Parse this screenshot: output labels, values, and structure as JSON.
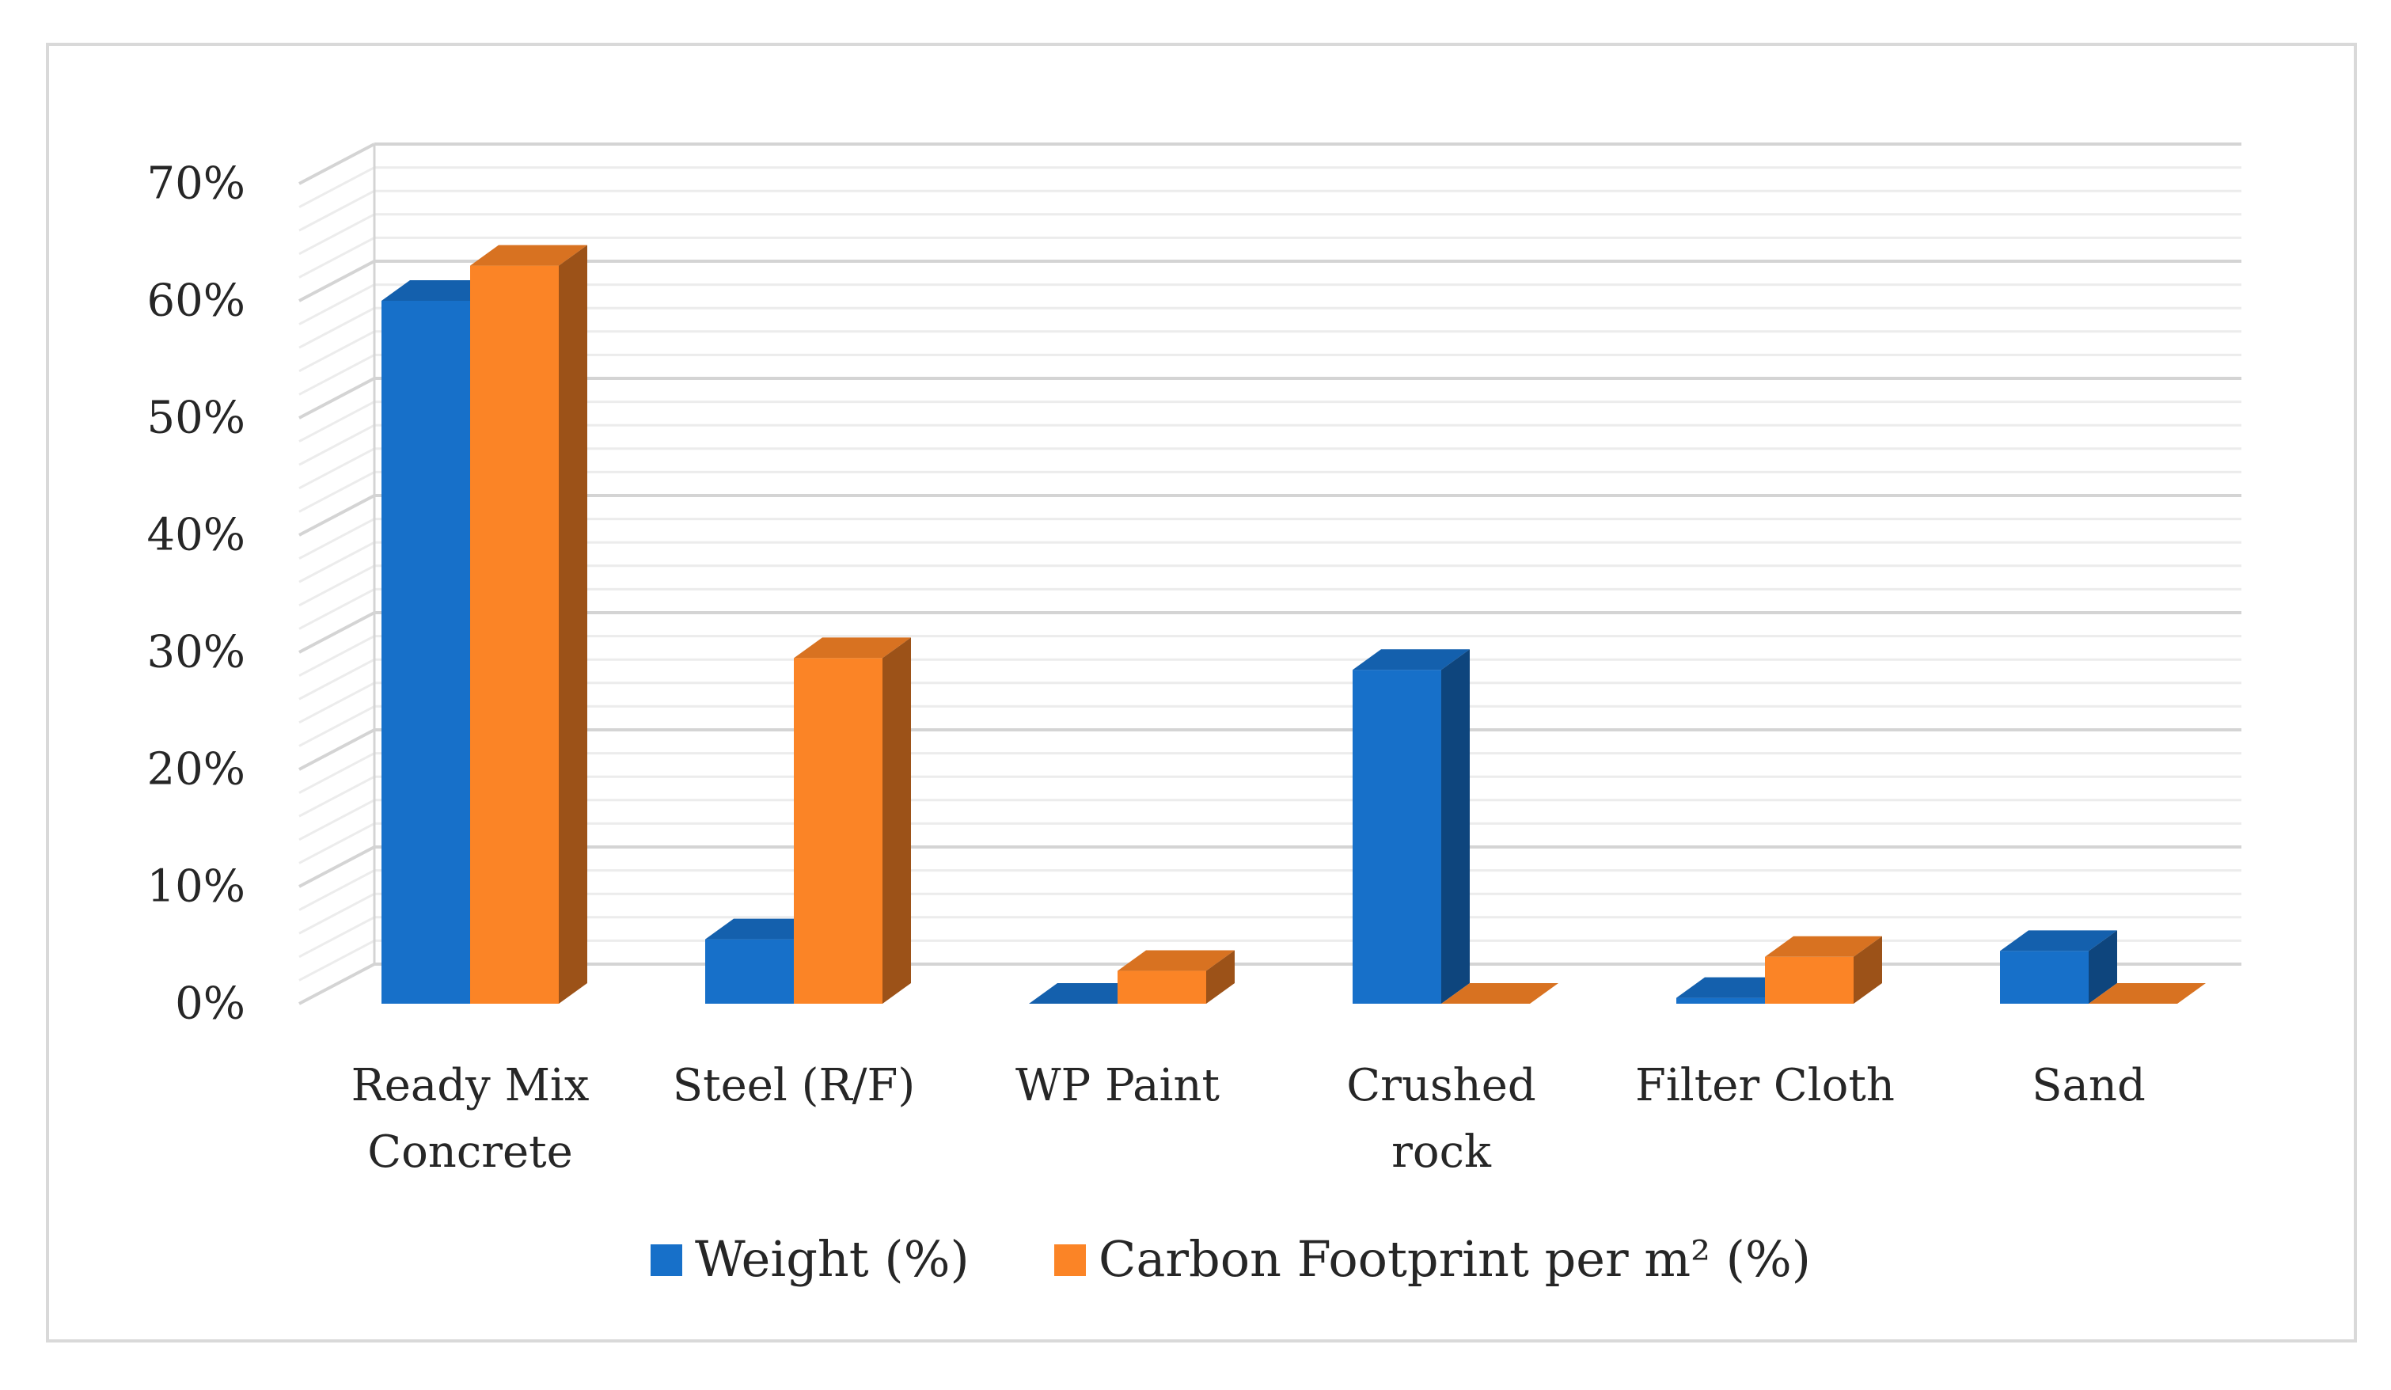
{
  "chart_data": {
    "type": "bar",
    "style": "3d-clustered-column",
    "title": "",
    "xlabel": "",
    "ylabel": "",
    "categories": [
      [
        "Ready Mix",
        "Concrete"
      ],
      [
        "Steel (R/F)"
      ],
      [
        "WP Paint"
      ],
      [
        "Crushed",
        "rock"
      ],
      [
        "Filter Cloth"
      ],
      [
        "Sand"
      ]
    ],
    "series": [
      {
        "name": "Weight (%)",
        "color": "#1770c9",
        "values": [
          60,
          5.5,
          0,
          28.5,
          0.5,
          4.5
        ]
      },
      {
        "name": "Carbon Footprint per m² (%)",
        "color": "#fb8426",
        "values": [
          63,
          29.5,
          2.8,
          0,
          4,
          0
        ]
      }
    ],
    "ylim": [
      0,
      70
    ],
    "yticks": [
      "0%",
      "10%",
      "20%",
      "30%",
      "40%",
      "50%",
      "60%",
      "70%"
    ],
    "grid": true,
    "legend_position": "bottom"
  }
}
